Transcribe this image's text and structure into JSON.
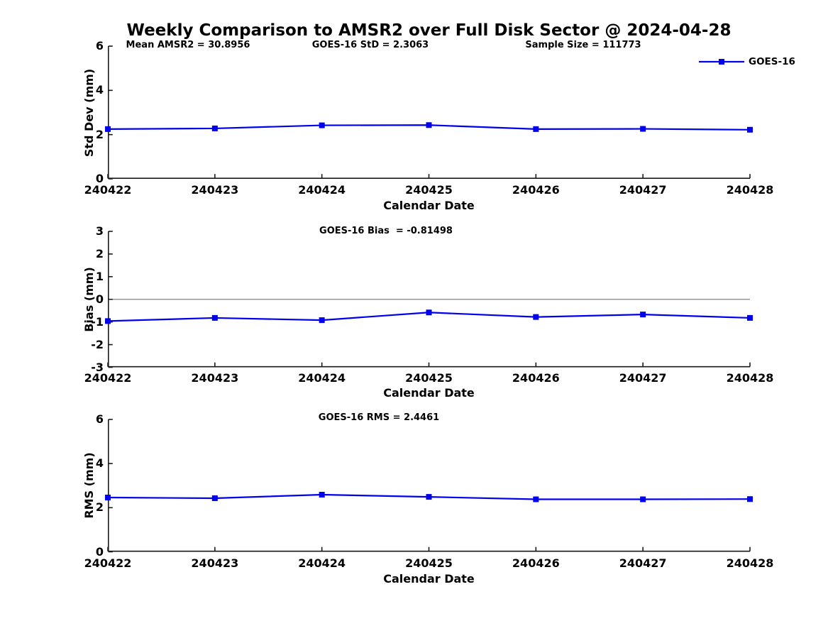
{
  "figure": {
    "title": "Weekly Comparison to AMSR2 over Full Disk Sector @ 2024-04-28"
  },
  "colors": {
    "line": "#0000ee",
    "axis": "#1a1a1a",
    "text": "#000000",
    "zero_line": "#808080",
    "background": "#ffffff"
  },
  "legend": {
    "label": "GOES-16"
  },
  "chart_data": [
    {
      "type": "line",
      "name": "std-dev-vs-date",
      "annotations": [
        "Mean AMSR2 = 30.8956",
        "GOES-16 StD = 2.3063",
        "Sample Size = 111773"
      ],
      "x_labels": [
        "240422",
        "240423",
        "240424",
        "240425",
        "240426",
        "240427",
        "240428"
      ],
      "xlabel": "Calendar Date",
      "ylabel": "Std Dev (mm)",
      "ylim": [
        0,
        6
      ],
      "yticks": [
        0,
        2,
        4,
        6
      ],
      "grid": false,
      "zero_line": false,
      "legend_position": "top-right",
      "series": [
        {
          "name": "GOES-16",
          "marker": "square",
          "values": [
            2.25,
            2.28,
            2.42,
            2.43,
            2.25,
            2.26,
            2.22
          ]
        }
      ]
    },
    {
      "type": "line",
      "name": "bias-vs-date",
      "annotations": [
        "GOES-16 Bias  = -0.81498"
      ],
      "x_labels": [
        "240422",
        "240423",
        "240424",
        "240425",
        "240426",
        "240427",
        "240428"
      ],
      "xlabel": "Calendar Date",
      "ylabel": "Bias (mm)",
      "ylim": [
        -3,
        3
      ],
      "yticks": [
        -3,
        -2,
        -1,
        0,
        1,
        2,
        3
      ],
      "grid": false,
      "zero_line": true,
      "series": [
        {
          "name": "GOES-16",
          "marker": "square",
          "values": [
            -0.96,
            -0.82,
            -0.92,
            -0.58,
            -0.78,
            -0.67,
            -0.82
          ]
        }
      ]
    },
    {
      "type": "line",
      "name": "rms-vs-date",
      "annotations": [
        "GOES-16 RMS = 2.4461"
      ],
      "x_labels": [
        "240422",
        "240423",
        "240424",
        "240425",
        "240426",
        "240427",
        "240428"
      ],
      "xlabel": "Calendar Date",
      "ylabel": "RMS (mm)",
      "ylim": [
        0,
        6
      ],
      "yticks": [
        0,
        2,
        4,
        6
      ],
      "grid": false,
      "zero_line": false,
      "series": [
        {
          "name": "GOES-16",
          "marker": "square",
          "values": [
            2.46,
            2.43,
            2.59,
            2.49,
            2.38,
            2.38,
            2.39
          ]
        }
      ]
    }
  ]
}
